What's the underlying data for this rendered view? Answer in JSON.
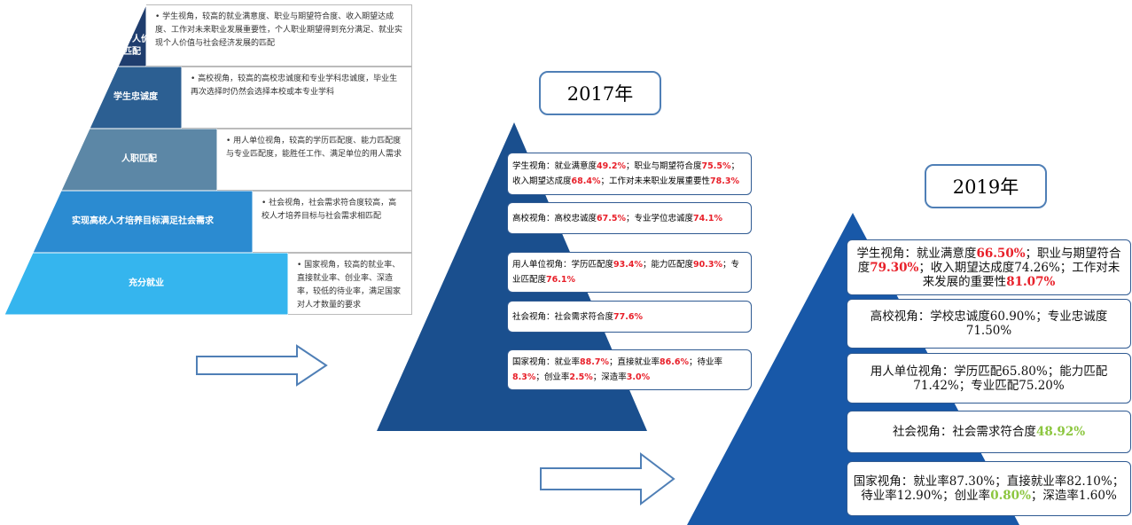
{
  "pyramid": {
    "levels": [
      {
        "label": "实现个人价值匹配",
        "description": "• 学生视角，较高的就业满意度、职业与期望符合度、收入期望达成度、工作对未来职业发展重要性，个人职业期望得到充分满足、就业实现个人价值与社会经济发展的匹配"
      },
      {
        "label": "学生忠诚度",
        "description": "• 高校视角，较高的高校忠诚度和专业学科忠诚度，毕业生再次选择时仍然会选择本校或本专业学科"
      },
      {
        "label": "人职匹配",
        "description": "• 用人单位视角，较高的学历匹配度、能力匹配度与专业匹配度，能胜任工作、满足单位的用人需求"
      },
      {
        "label": "实现高校人才培养目标满足社会需求",
        "description": "• 社会视角，社会需求符合度较高，高校人才培养目标与社会需求相匹配"
      },
      {
        "label": "充分就业",
        "description": "• 国家视角，较高的就业率、直接就业率、创业率、深造率，较低的待业率，满足国家对人才数量的要求"
      }
    ]
  },
  "year2017": {
    "title": "2017年",
    "items": [
      [
        {
          "text": "学生视角：就业满意度"
        },
        {
          "text": "49.2%",
          "color": "#e8202a"
        },
        {
          "text": "；职业与期望符合度"
        },
        {
          "text": "75.5%",
          "color": "#e8202a"
        },
        {
          "text": "；收入期望达成度"
        },
        {
          "text": "68.4%",
          "color": "#e8202a"
        },
        {
          "text": "；工作对未来职业发展重要性"
        },
        {
          "text": "78.3%",
          "color": "#e8202a"
        }
      ],
      [
        {
          "text": "高校视角：高校忠诚度"
        },
        {
          "text": "67.5%",
          "color": "#e8202a"
        },
        {
          "text": "；专业学位忠诚度"
        },
        {
          "text": "74.1%",
          "color": "#e8202a"
        }
      ],
      [
        {
          "text": "用人单位视角：学历匹配度"
        },
        {
          "text": "93.4%",
          "color": "#e8202a"
        },
        {
          "text": "；能力匹配度"
        },
        {
          "text": "90.3%",
          "color": "#e8202a"
        },
        {
          "text": "；专业匹配度"
        },
        {
          "text": "76.1%",
          "color": "#e8202a"
        }
      ],
      [
        {
          "text": "社会视角：社会需求符合度"
        },
        {
          "text": "77.6%",
          "color": "#e8202a"
        }
      ],
      [
        {
          "text": "国家视角：就业率"
        },
        {
          "text": "88.7%",
          "color": "#e8202a"
        },
        {
          "text": "；直接就业率"
        },
        {
          "text": "86.6%",
          "color": "#e8202a"
        },
        {
          "text": "；待业率"
        },
        {
          "text": "8.3%",
          "color": "#e8202a"
        },
        {
          "text": "；创业率"
        },
        {
          "text": "2.5%",
          "color": "#e8202a"
        },
        {
          "text": "；深造率"
        },
        {
          "text": "3.0%",
          "color": "#e8202a"
        }
      ]
    ]
  },
  "year2019": {
    "title": "2019年",
    "items": [
      [
        {
          "text": "学生视角：就业满意度"
        },
        {
          "text": "66.50%",
          "color": "#e8202a"
        },
        {
          "text": "；职业与期望符合度"
        },
        {
          "text": "79.30%",
          "color": "#e8202a"
        },
        {
          "text": "；收入期望达成度74.26%；工作对未来发展的重要性"
        },
        {
          "text": "81.07%",
          "color": "#e8202a"
        }
      ],
      [
        {
          "text": "高校视角：学校忠诚度60.90%；专业忠诚度71.50%"
        }
      ],
      [
        {
          "text": "用人单位视角：学历匹配65.80%；能力匹配71.42%；专业匹配75.20%"
        }
      ],
      [
        {
          "text": "社会视角：社会需求符合度"
        },
        {
          "text": "48.92%",
          "color": "#8cc63f"
        }
      ],
      [
        {
          "text": "国家视角：就业率87.30%；直接就业率82.10%；待业率12.90%；创业率"
        },
        {
          "text": "0.80%",
          "color": "#8cc63f"
        },
        {
          "text": "；深造率1.60%"
        }
      ]
    ]
  }
}
